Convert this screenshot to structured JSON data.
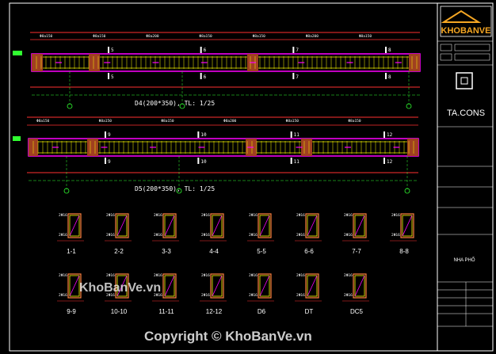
{
  "beams": [
    {
      "title": "D4(200*350), TL: 1/25",
      "rebar_labels": [
        "Φ8a150",
        "Φ8a150",
        "Φ8a200",
        "Φ8a150",
        "Φ8a150",
        "Φ8a200",
        "Φ8a150"
      ],
      "cut_marks": [
        "5",
        "6",
        "7",
        "8"
      ]
    },
    {
      "title": "D5(200*350), TL: 1/25",
      "rebar_labels": [
        "Φ8a150",
        "Φ8a150",
        "Φ8a150",
        "Φ8a200",
        "Φ8a150",
        "Φ8a150"
      ],
      "cut_marks": [
        "9",
        "10",
        "11",
        "12"
      ]
    }
  ],
  "sections_row1": [
    "1-1",
    "2-2",
    "3-3",
    "4-4",
    "5-5",
    "6-6",
    "7-7",
    "8-8"
  ],
  "sections_row2": [
    "9-9",
    "10-10",
    "11-11",
    "12-12",
    "D6",
    "DT",
    "DC5"
  ],
  "section_rebar_label": "2Φ16",
  "title_block": {
    "brand": "KHOBANVE",
    "company": "TA.CONS",
    "project": "NHA PHỐ"
  },
  "watermark": "Copyright © KhoBanVe.vn",
  "watermark_small": "KhoBanVe.vn",
  "colors": {
    "background": "#000000",
    "frame": "#ffffff",
    "beam": "#ff00ff",
    "dimension": "#ff3030",
    "rebar": "#ffff00",
    "axis": "#30ff30",
    "hatch": "#ff8040"
  }
}
